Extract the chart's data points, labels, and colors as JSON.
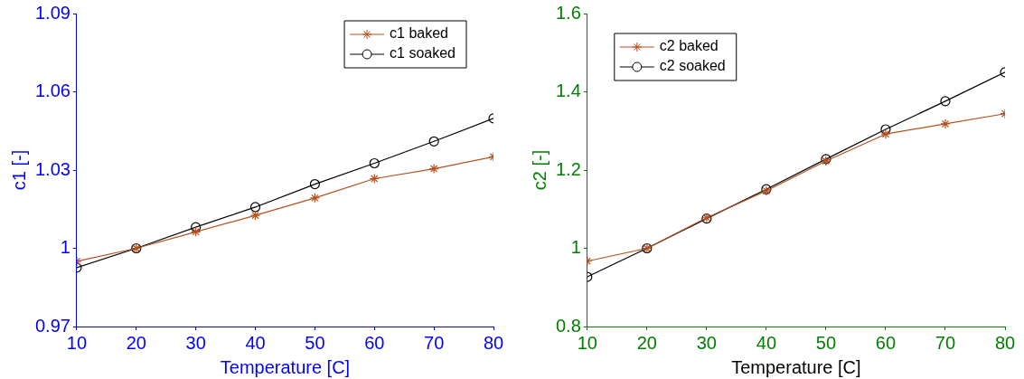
{
  "chart_data": [
    {
      "type": "line",
      "xlabel": "Temperature [C]",
      "ylabel": "c1 [-]",
      "x": [
        10,
        20,
        30,
        40,
        50,
        60,
        70,
        80
      ],
      "series": [
        {
          "name": "c1 baked",
          "color": "#b5501e",
          "marker": "cross",
          "values": [
            0.995,
            1.0,
            1.0063,
            1.0126,
            1.0193,
            1.0267,
            1.0305,
            1.0351
          ]
        },
        {
          "name": "c1 soaked",
          "color": "#000000",
          "marker": "circle",
          "values": [
            0.9926,
            1.0,
            1.0081,
            1.0158,
            1.0246,
            1.0326,
            1.041,
            1.0498
          ]
        }
      ],
      "xlim": [
        10,
        80
      ],
      "xticks": [
        10,
        20,
        30,
        40,
        50,
        60,
        70,
        80
      ],
      "ylim": [
        0.97,
        1.09
      ],
      "yticks": [
        0.97,
        1,
        1.03,
        1.06,
        1.09
      ],
      "grid": false,
      "legend": "top right"
    },
    {
      "type": "line",
      "xlabel": "Temperature [C]",
      "ylabel": "c2 [-]",
      "x": [
        10,
        20,
        30,
        40,
        50,
        60,
        70,
        80
      ],
      "series": [
        {
          "name": "c2 baked",
          "color": "#b5501e",
          "marker": "cross",
          "values": [
            0.967,
            1.0,
            1.078,
            1.147,
            1.223,
            1.292,
            1.318,
            1.344
          ]
        },
        {
          "name": "c2 soaked",
          "color": "#000000",
          "marker": "circle",
          "values": [
            0.927,
            1.0,
            1.076,
            1.151,
            1.228,
            1.304,
            1.376,
            1.45
          ]
        }
      ],
      "xlim": [
        10,
        80
      ],
      "xticks": [
        10,
        20,
        30,
        40,
        50,
        60,
        70,
        80
      ],
      "ylim": [
        0.8,
        1.6
      ],
      "yticks": [
        0.8,
        1,
        1.2,
        1.4,
        1.6
      ],
      "grid": false,
      "legend": "top left"
    }
  ]
}
